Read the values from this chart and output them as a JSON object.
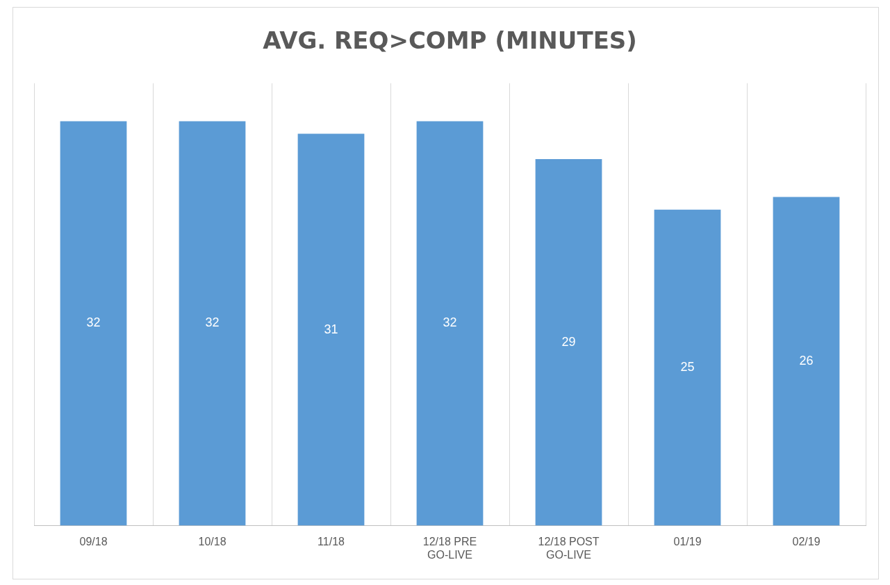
{
  "chart_data": {
    "type": "bar",
    "title": "AVG. REQ>COMP (MINUTES)",
    "categories": [
      "09/18",
      "10/18",
      "11/18",
      "12/18 PRE GO-LIVE",
      "12/18 POST GO-LIVE",
      "01/19",
      "02/19"
    ],
    "values": [
      32,
      32,
      31,
      32,
      29,
      25,
      26
    ],
    "color": "#5b9bd5",
    "data_labels": true,
    "grid": "x",
    "legend": false
  }
}
